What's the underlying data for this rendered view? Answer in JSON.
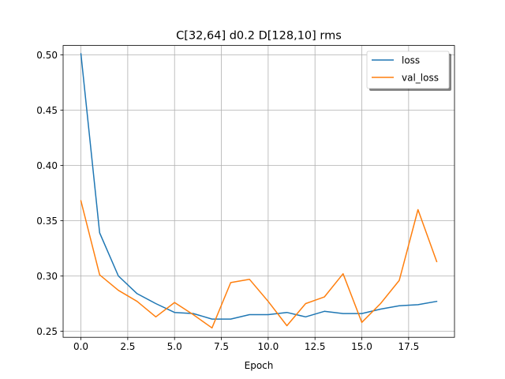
{
  "chart_data": {
    "type": "line",
    "title": "C[32,64] d0.2 D[128,10] rms",
    "xlabel": "Epoch",
    "ylabel": "",
    "xlim": [
      -0.95,
      19.95
    ],
    "ylim": [
      0.2445,
      0.5085
    ],
    "x_ticks": [
      0.0,
      2.5,
      5.0,
      7.5,
      10.0,
      12.5,
      15.0,
      17.5
    ],
    "x_tick_labels": [
      "0.0",
      "2.5",
      "5.0",
      "7.5",
      "10.0",
      "12.5",
      "15.0",
      "17.5"
    ],
    "y_ticks": [
      0.25,
      0.3,
      0.35,
      0.4,
      0.45,
      0.5
    ],
    "y_tick_labels": [
      "0.25",
      "0.30",
      "0.35",
      "0.40",
      "0.45",
      "0.50"
    ],
    "grid": true,
    "legend_position": "top-right",
    "x": [
      0,
      1,
      2,
      3,
      4,
      5,
      6,
      7,
      8,
      9,
      10,
      11,
      12,
      13,
      14,
      15,
      16,
      17,
      18,
      19
    ],
    "series": [
      {
        "name": "loss",
        "color": "#1f77b4",
        "values": [
          0.501,
          0.339,
          0.3,
          0.284,
          0.275,
          0.267,
          0.266,
          0.261,
          0.261,
          0.265,
          0.265,
          0.267,
          0.263,
          0.268,
          0.266,
          0.266,
          0.27,
          0.273,
          0.274,
          0.277
        ]
      },
      {
        "name": "val_loss",
        "color": "#ff7f0e",
        "values": [
          0.368,
          0.301,
          0.287,
          0.277,
          0.263,
          0.276,
          0.265,
          0.253,
          0.294,
          0.297,
          0.277,
          0.255,
          0.275,
          0.281,
          0.302,
          0.258,
          0.275,
          0.296,
          0.36,
          0.313
        ]
      }
    ]
  }
}
